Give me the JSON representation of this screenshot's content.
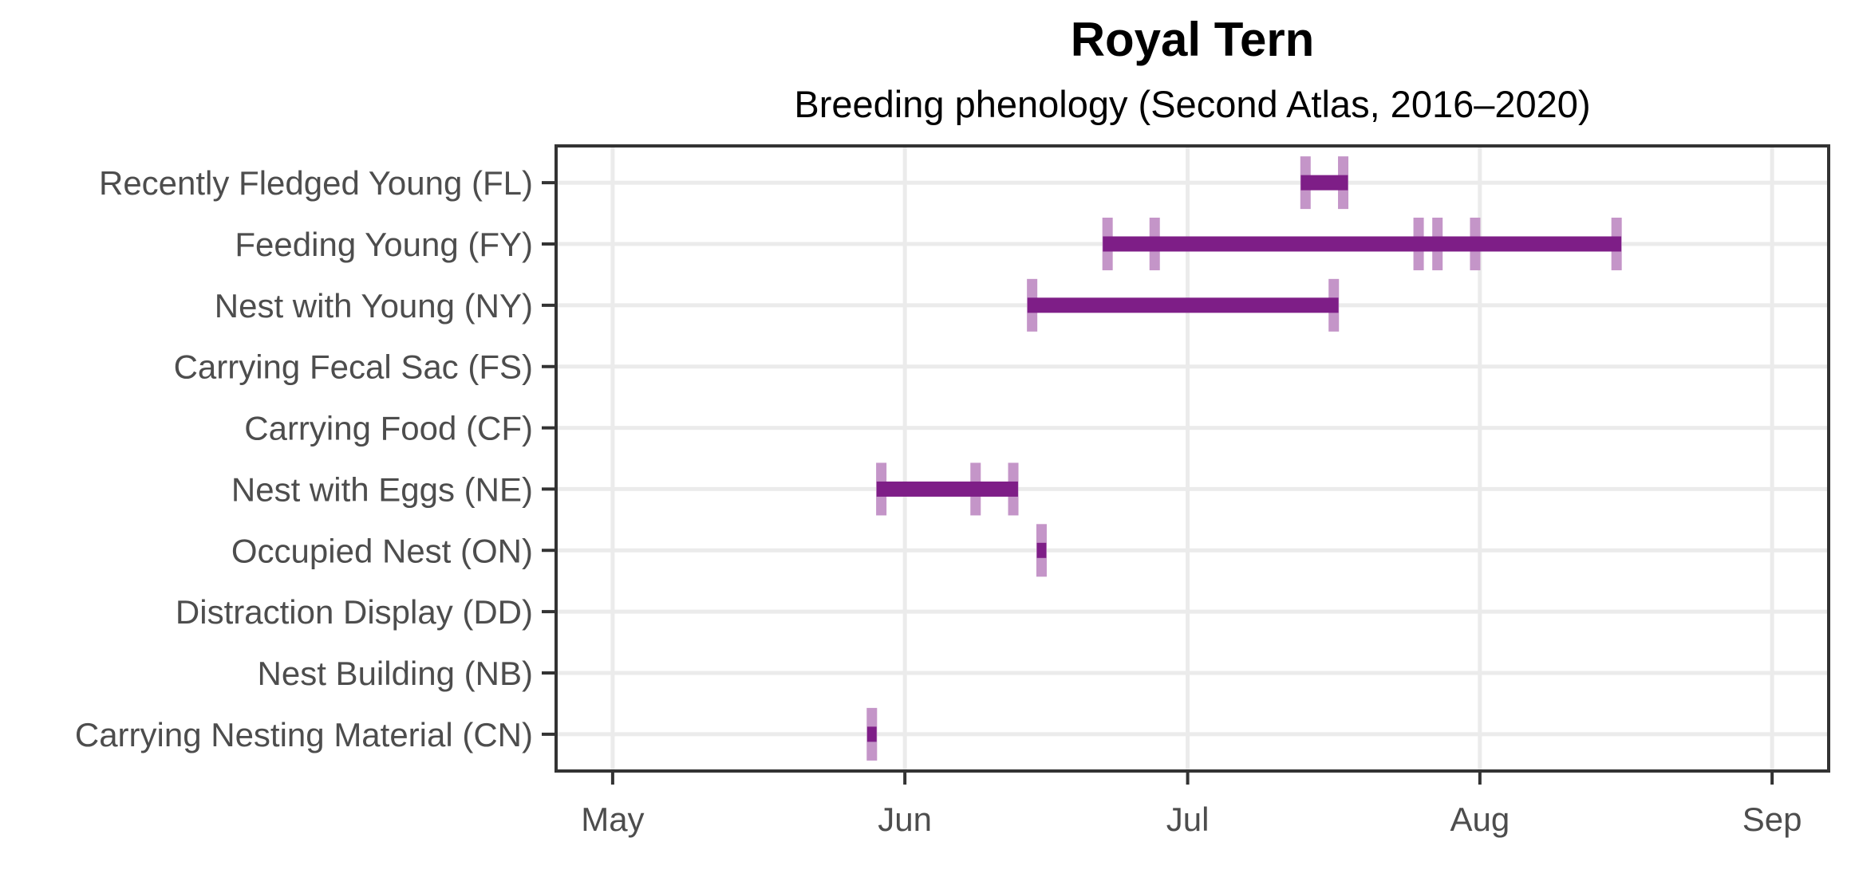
{
  "page": {
    "background": "#ffffff"
  },
  "chart_data": {
    "type": "bar",
    "variant": "phenology-timeline",
    "orientation": "horizontal",
    "title": "Royal Tern",
    "subtitle": "Breeding phenology (Second Atlas, 2016–2020)",
    "legend": {
      "visible": false
    },
    "grid": true,
    "x_axis": {
      "domain_start": "Apr 25",
      "domain_end": "Sep 7",
      "ticks": [
        {
          "label": "May",
          "date": "May 1"
        },
        {
          "label": "Jun",
          "date": "Jun 1"
        },
        {
          "label": "Jul",
          "date": "Jul 1"
        },
        {
          "label": "Aug",
          "date": "Aug 1"
        },
        {
          "label": "Sep",
          "date": "Sep 1"
        }
      ]
    },
    "categories": [
      {
        "code": "FL",
        "label": "Recently Fledged Young (FL)",
        "observations": [
          "Jul 13",
          "Jul 17"
        ],
        "bar": {
          "start": "Jul 13",
          "end": "Jul 17"
        }
      },
      {
        "code": "FY",
        "label": "Feeding Young (FY)",
        "observations": [
          "Jun 22",
          "Jun 27",
          "Jul 25",
          "Jul 27",
          "Jul 31",
          "Aug 15"
        ],
        "bar": {
          "start": "Jun 22",
          "end": "Aug 15"
        }
      },
      {
        "code": "NY",
        "label": "Nest with Young (NY)",
        "observations": [
          "Jun 14",
          "Jul 16"
        ],
        "bar": {
          "start": "Jun 14",
          "end": "Jul 16"
        }
      },
      {
        "code": "FS",
        "label": "Carrying Fecal Sac (FS)",
        "observations": [],
        "bar": null
      },
      {
        "code": "CF",
        "label": "Carrying Food (CF)",
        "observations": [],
        "bar": null
      },
      {
        "code": "NE",
        "label": "Nest with Eggs (NE)",
        "observations": [
          "May 29",
          "Jun 8",
          "Jun 12"
        ],
        "bar": {
          "start": "May 29",
          "end": "Jun 12"
        }
      },
      {
        "code": "ON",
        "label": "Occupied Nest (ON)",
        "observations": [
          "Jun 15"
        ],
        "bar": {
          "start": "Jun 15",
          "end": "Jun 15"
        }
      },
      {
        "code": "DD",
        "label": "Distraction Display (DD)",
        "observations": [],
        "bar": null
      },
      {
        "code": "NB",
        "label": "Nest Building (NB)",
        "observations": [],
        "bar": null
      },
      {
        "code": "CN",
        "label": "Carrying Nesting Material (CN)",
        "observations": [
          "May 28"
        ],
        "bar": {
          "start": "May 28",
          "end": "May 28"
        }
      }
    ],
    "colors": {
      "bar": "#7e1e87",
      "observation_tick": "#c495c8",
      "gridline": "#ebebeb",
      "axis": "#333333",
      "axis_text": "#4d4d4d",
      "title_text": "#000000",
      "background": "#ffffff"
    }
  }
}
